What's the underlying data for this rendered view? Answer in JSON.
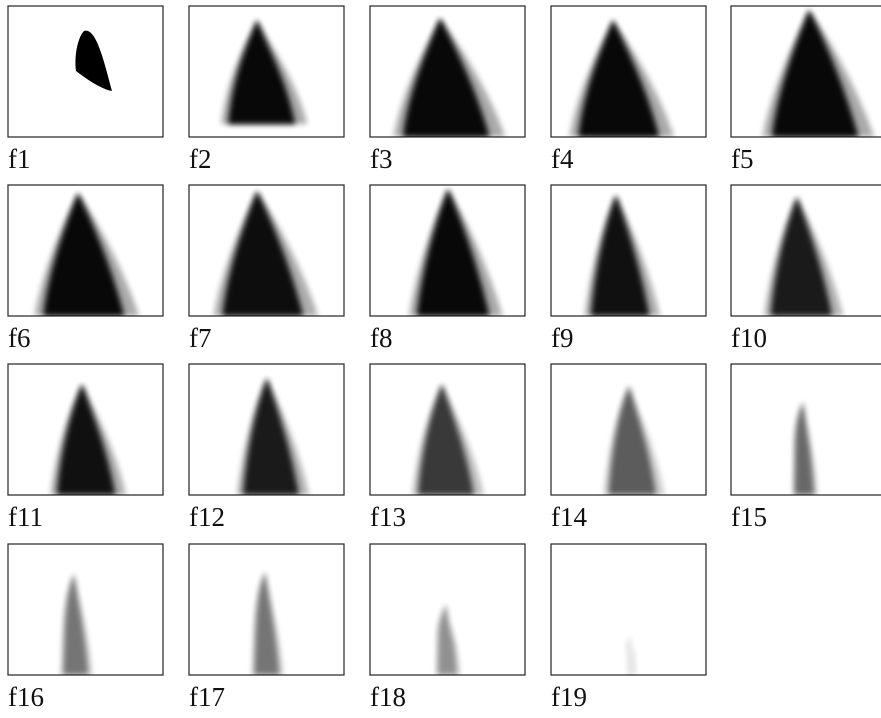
{
  "panels": [
    {
      "label": "f1"
    },
    {
      "label": "f2"
    },
    {
      "label": "f3"
    },
    {
      "label": "f4"
    },
    {
      "label": "f5"
    },
    {
      "label": "f6"
    },
    {
      "label": "f7"
    },
    {
      "label": "f8"
    },
    {
      "label": "f9"
    },
    {
      "label": "f10"
    },
    {
      "label": "f11"
    },
    {
      "label": "f12"
    },
    {
      "label": "f13"
    },
    {
      "label": "f14"
    },
    {
      "label": "f15"
    },
    {
      "label": "f16"
    },
    {
      "label": "f17"
    },
    {
      "label": "f18"
    },
    {
      "label": "f19"
    }
  ]
}
